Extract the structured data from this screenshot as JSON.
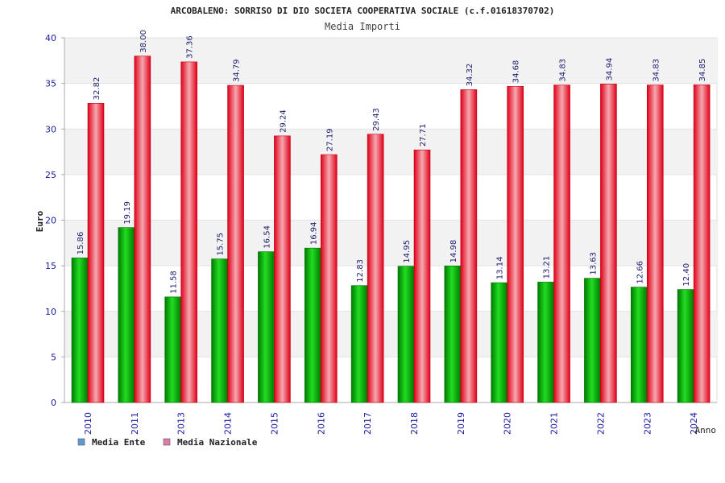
{
  "chart_data": {
    "type": "bar",
    "title": "ARCOBALENO: SORRISO DI DIO SOCIETA COOPERATIVA SOCIALE (c.f.01618370702)",
    "subtitle": "Media Importi",
    "xlabel": "Anno",
    "ylabel": "Euro",
    "ylim": [
      0,
      40
    ],
    "yticks": [
      "0",
      "5",
      "10",
      "15",
      "20",
      "25",
      "30",
      "35",
      "40"
    ],
    "categories": [
      "2010",
      "2011",
      "2013",
      "2014",
      "2015",
      "2016",
      "2017",
      "2018",
      "2019",
      "2020",
      "2021",
      "2022",
      "2023",
      "2024"
    ],
    "series": [
      {
        "name": "Media Ente",
        "color": "#00b000",
        "legend_color": "#5b9bd5",
        "values": [
          15.86,
          19.19,
          11.58,
          15.75,
          16.54,
          16.94,
          12.83,
          14.95,
          14.98,
          13.14,
          13.21,
          13.63,
          12.66,
          12.4
        ],
        "labels": [
          "15.86",
          "19.19",
          "11.58",
          "15.75",
          "16.54",
          "16.94",
          "12.83",
          "14.95",
          "14.98",
          "13.14",
          "13.21",
          "13.63",
          "12.66",
          "12.40"
        ]
      },
      {
        "name": "Media Nazionale",
        "color": "#e8001c",
        "legend_color": "#e07aa8",
        "values": [
          32.82,
          38.0,
          37.36,
          34.79,
          29.24,
          27.19,
          29.43,
          27.71,
          34.32,
          34.68,
          34.83,
          34.94,
          34.83,
          34.85
        ],
        "labels": [
          "32.82",
          "38.00",
          "37.36",
          "34.79",
          "29.24",
          "27.19",
          "29.43",
          "27.71",
          "34.32",
          "34.68",
          "34.83",
          "34.94",
          "34.83",
          "34.85"
        ]
      }
    ],
    "grid": true,
    "legend_position": "bottom-left"
  }
}
